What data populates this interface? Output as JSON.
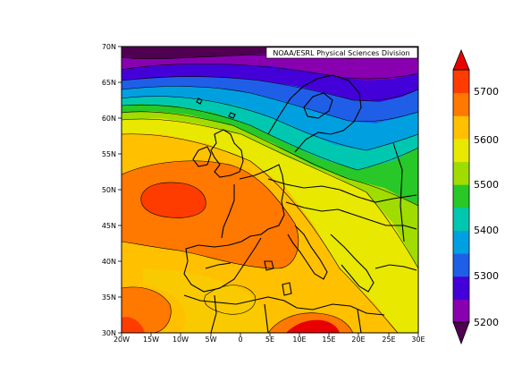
{
  "map": {
    "credit": "NOAA/ESRL Physical Sciences Division",
    "x_ticks": [
      "20W",
      "15W",
      "10W",
      "5W",
      "0",
      "5E",
      "10E",
      "15E",
      "20E",
      "25E",
      "30E"
    ],
    "y_ticks": [
      "70N",
      "65N",
      "60N",
      "55N",
      "50N",
      "45N",
      "40N",
      "35N",
      "30N"
    ]
  },
  "colorbar": {
    "labels": [
      "5700",
      "5600",
      "5500",
      "5400",
      "5300",
      "5200"
    ],
    "colors": [
      "#500050",
      "#8800b0",
      "#4400d8",
      "#1f5fe8",
      "#00a0e0",
      "#00c8b0",
      "#28c828",
      "#a0dc00",
      "#e8e800",
      "#ffc000",
      "#ff7800",
      "#ff3c00",
      "#e80000"
    ]
  }
}
